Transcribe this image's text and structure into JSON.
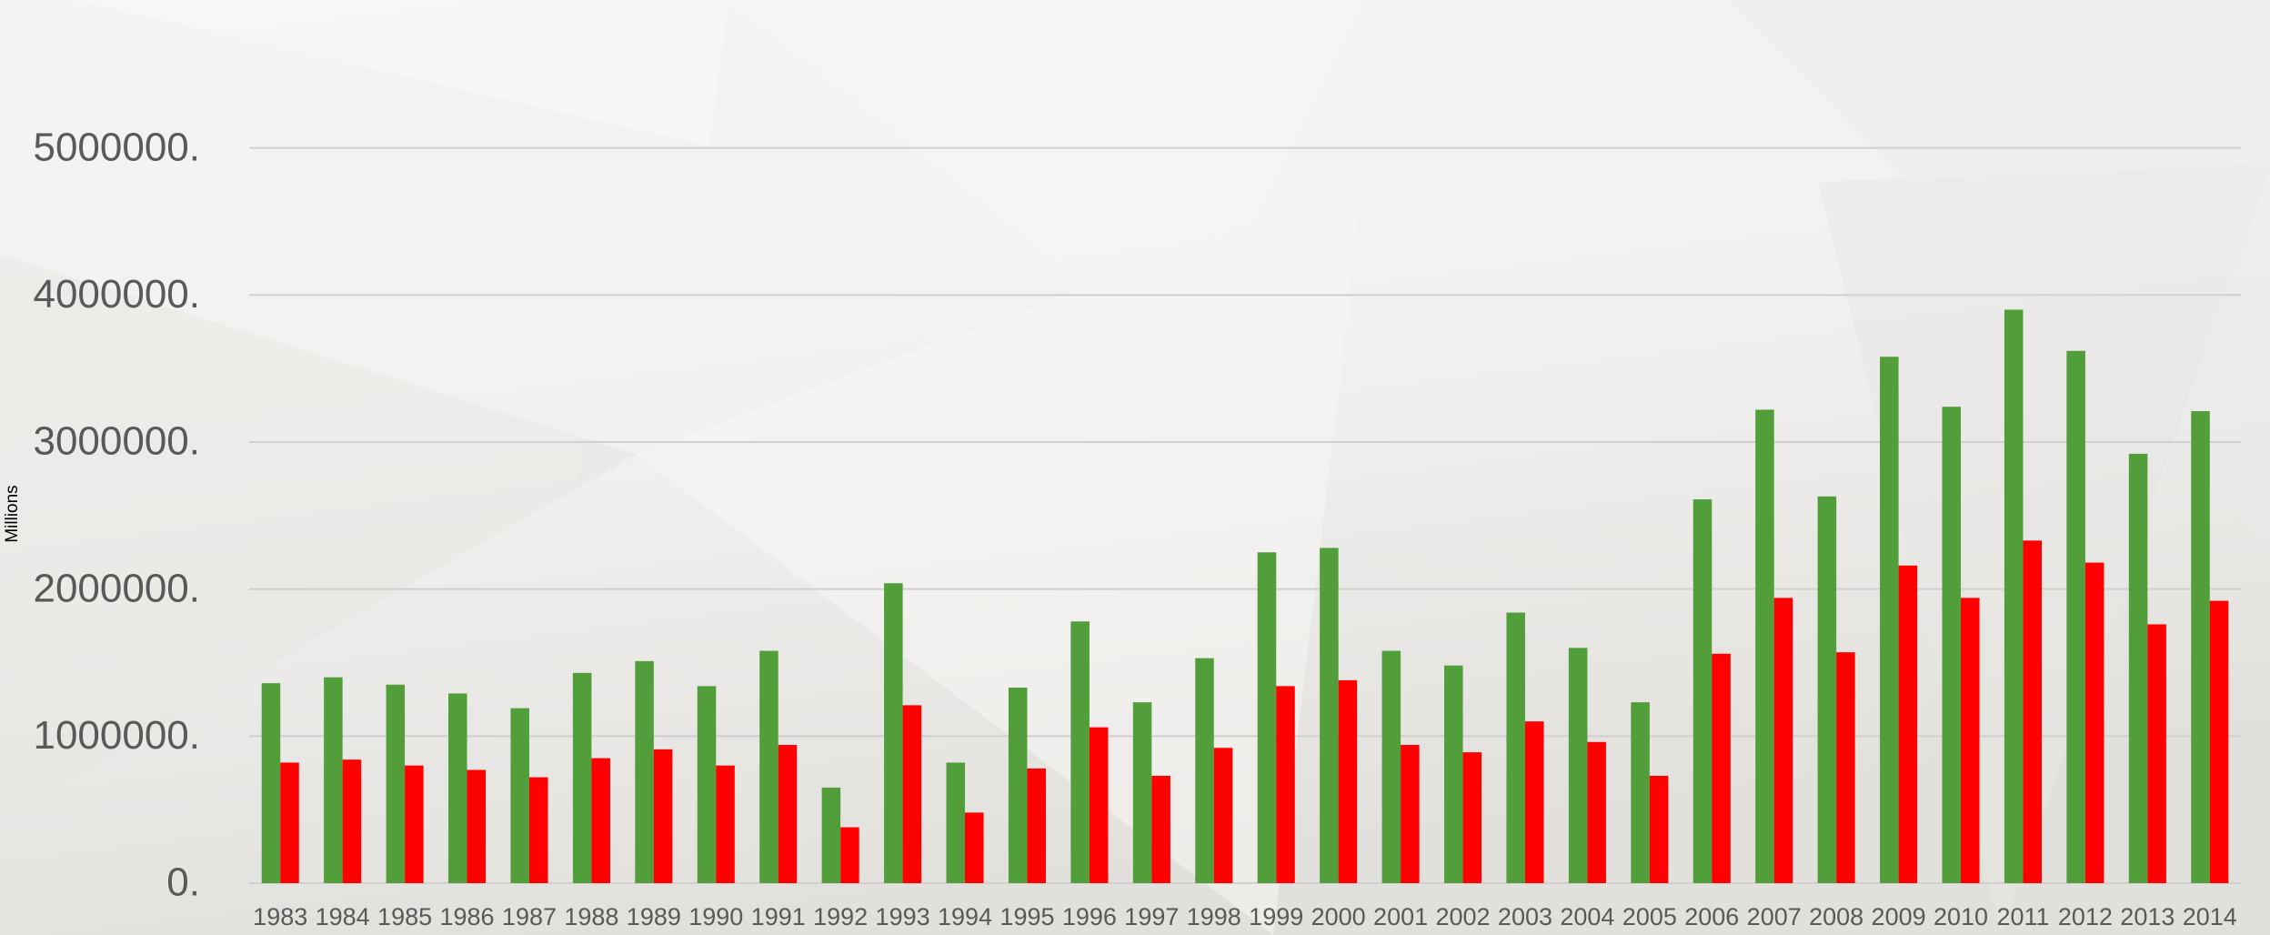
{
  "chart_data": {
    "type": "bar",
    "y_label": "Millions",
    "categories": [
      "1983",
      "1984",
      "1985",
      "1986",
      "1987",
      "1988",
      "1989",
      "1990",
      "1991",
      "1992",
      "1993",
      "1994",
      "1995",
      "1996",
      "1997",
      "1998",
      "1999",
      "2000",
      "2001",
      "2002",
      "2003",
      "2004",
      "2005",
      "2006",
      "2007",
      "2008",
      "2009",
      "2010",
      "2011",
      "2012",
      "2013",
      "2014"
    ],
    "series": [
      {
        "color": "#529e3a",
        "values": [
          1360000,
          1400000,
          1350000,
          1290000,
          1190000,
          1430000,
          1510000,
          1340000,
          1580000,
          650000,
          2040000,
          820000,
          1330000,
          1780000,
          1230000,
          1530000,
          2250000,
          2280000,
          1580000,
          1480000,
          1840000,
          1600000,
          1230000,
          2610000,
          3220000,
          2630000,
          3580000,
          3240000,
          3900000,
          3620000,
          2920000,
          3210000
        ]
      },
      {
        "color": "#ff0000",
        "values": [
          820000,
          840000,
          800000,
          770000,
          720000,
          850000,
          910000,
          800000,
          940000,
          380000,
          1210000,
          480000,
          780000,
          1060000,
          730000,
          920000,
          1340000,
          1380000,
          940000,
          890000,
          1100000,
          960000,
          730000,
          1560000,
          1940000,
          1570000,
          2160000,
          1940000,
          2330000,
          2180000,
          1760000,
          1920000
        ]
      }
    ],
    "ylim": [
      0,
      6000000
    ],
    "yticks": [
      {
        "value": 0,
        "label": "0."
      },
      {
        "value": 1000000,
        "label": "1000000."
      },
      {
        "value": 2000000,
        "label": "2000000."
      },
      {
        "value": 3000000,
        "label": "3000000."
      },
      {
        "value": 4000000,
        "label": "4000000."
      },
      {
        "value": 5000000,
        "label": "5000000."
      }
    ],
    "grid": true
  }
}
